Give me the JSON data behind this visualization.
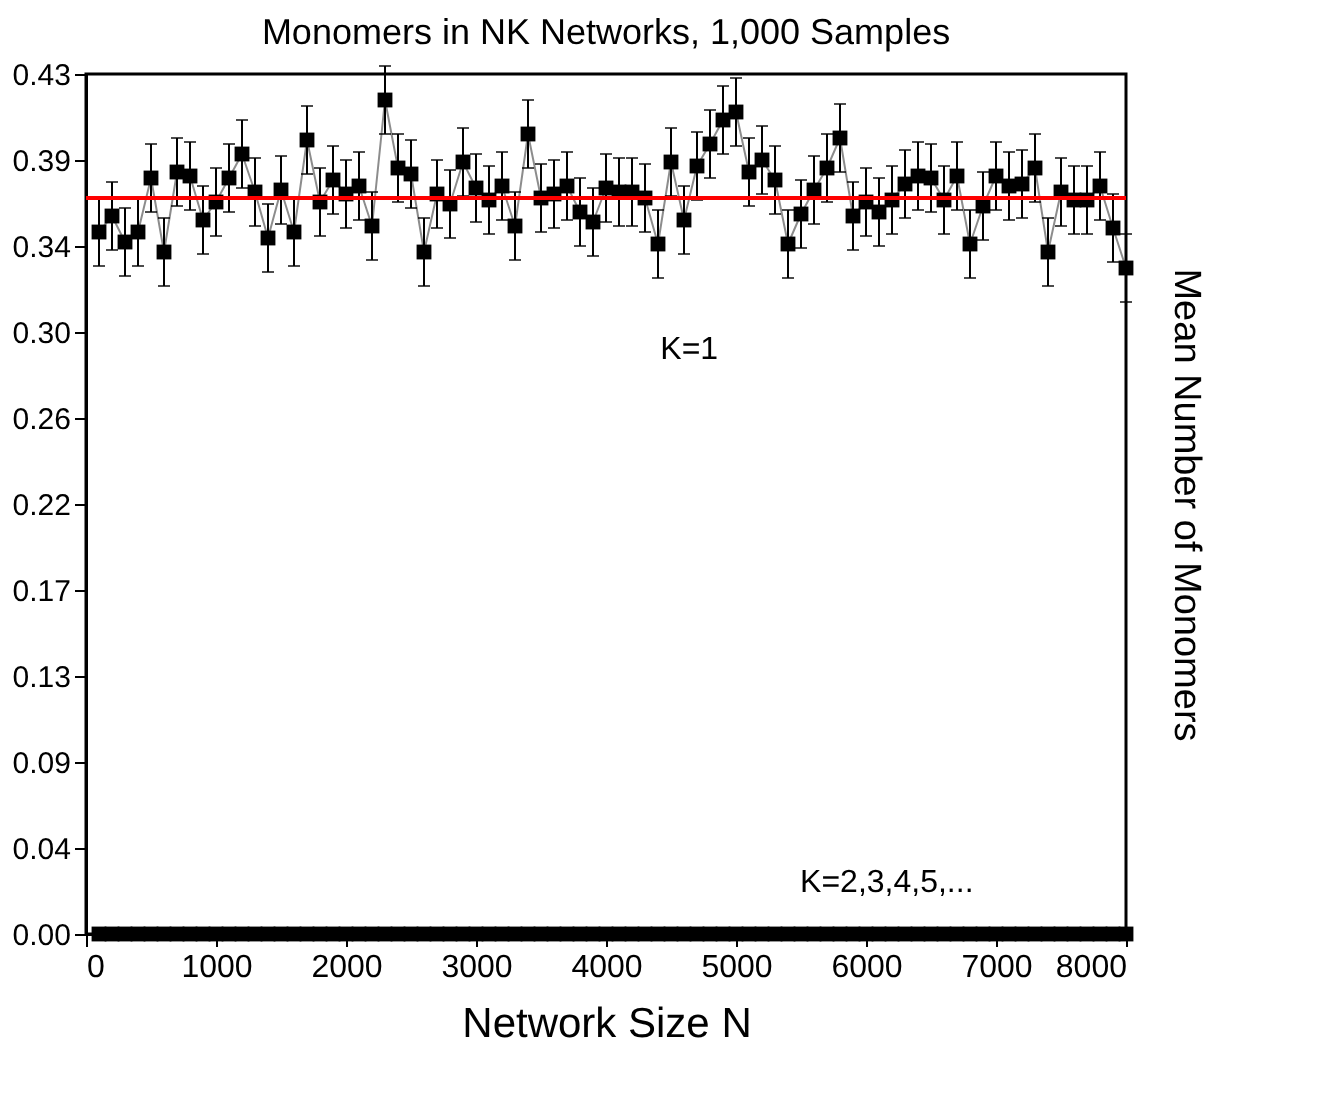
{
  "chart_data": {
    "type": "scatter",
    "title": "Monomers in NK Networks, 1,000 Samples",
    "xlabel": "Network Size N",
    "ylabel": "Mean Number of Monomers",
    "x": [
      100,
      200,
      300,
      400,
      500,
      600,
      700,
      800,
      900,
      1000,
      1100,
      1200,
      1300,
      1400,
      1500,
      1600,
      1700,
      1800,
      1900,
      2000,
      2100,
      2200,
      2300,
      2400,
      2500,
      2600,
      2700,
      2800,
      2900,
      3000,
      3100,
      3200,
      3300,
      3400,
      3500,
      3600,
      3700,
      3800,
      3900,
      4000,
      4100,
      4200,
      4300,
      4400,
      4500,
      4600,
      4700,
      4800,
      4900,
      5000,
      5100,
      5200,
      5300,
      5400,
      5500,
      5600,
      5700,
      5800,
      5900,
      6000,
      6100,
      6200,
      6300,
      6400,
      6500,
      6600,
      6700,
      6800,
      6900,
      7000,
      7100,
      7200,
      7300,
      7400,
      7500,
      7600,
      7700,
      7800,
      7900,
      8000
    ],
    "series": [
      {
        "color": "#000000",
        "type": "line",
        "marker": "square",
        "values": [
          0.351,
          0.359,
          0.346,
          0.351,
          0.378,
          0.341,
          0.381,
          0.379,
          0.357,
          0.366,
          0.378,
          0.39,
          0.371,
          0.348,
          0.372,
          0.351,
          0.397,
          0.366,
          0.377,
          0.37,
          0.374,
          0.354,
          0.417,
          0.383,
          0.38,
          0.341,
          0.37,
          0.365,
          0.386,
          0.373,
          0.367,
          0.374,
          0.354,
          0.4,
          0.368,
          0.37,
          0.374,
          0.361,
          0.356,
          0.373,
          0.371,
          0.371,
          0.368,
          0.345,
          0.386,
          0.357,
          0.384,
          0.395,
          0.407,
          0.411,
          0.381,
          0.387,
          0.377,
          0.345,
          0.36,
          0.372,
          0.383,
          0.398,
          0.359,
          0.366,
          0.361,
          0.367,
          0.375,
          0.379,
          0.378,
          0.367,
          0.379,
          0.345,
          0.364,
          0.379,
          0.374,
          0.375,
          0.383,
          0.341,
          0.371,
          0.367,
          0.367,
          0.374,
          0.353,
          0.333
        ],
        "errors": [
          0.017,
          0.017,
          0.017,
          0.017,
          0.017,
          0.017,
          0.017,
          0.017,
          0.017,
          0.017,
          0.017,
          0.017,
          0.017,
          0.017,
          0.017,
          0.017,
          0.017,
          0.017,
          0.017,
          0.017,
          0.017,
          0.017,
          0.017,
          0.017,
          0.017,
          0.017,
          0.017,
          0.017,
          0.017,
          0.017,
          0.017,
          0.017,
          0.017,
          0.017,
          0.017,
          0.017,
          0.017,
          0.017,
          0.017,
          0.017,
          0.017,
          0.017,
          0.017,
          0.017,
          0.017,
          0.017,
          0.017,
          0.017,
          0.017,
          0.017,
          0.017,
          0.017,
          0.017,
          0.017,
          0.017,
          0.017,
          0.017,
          0.017,
          0.017,
          0.017,
          0.017,
          0.017,
          0.017,
          0.017,
          0.017,
          0.017,
          0.017,
          0.017,
          0.017,
          0.017,
          0.017,
          0.017,
          0.017,
          0.017,
          0.017,
          0.017,
          0.017,
          0.017,
          0.017,
          0.017
        ]
      },
      {
        "color": "#000000",
        "marker": "square",
        "values": [
          0,
          0,
          0,
          0,
          0,
          0,
          0,
          0,
          0,
          0,
          0,
          0,
          0,
          0,
          0,
          0,
          0,
          0,
          0,
          0,
          0,
          0,
          0,
          0,
          0,
          0,
          0,
          0,
          0,
          0,
          0,
          0,
          0,
          0,
          0,
          0,
          0,
          0,
          0,
          0,
          0,
          0,
          0,
          0,
          0,
          0,
          0,
          0,
          0,
          0,
          0,
          0,
          0,
          0,
          0,
          0,
          0,
          0,
          0,
          0,
          0,
          0,
          0,
          0,
          0,
          0,
          0,
          0,
          0,
          0,
          0,
          0,
          0,
          0,
          0,
          0,
          0,
          0,
          0,
          0
        ]
      }
    ],
    "ref_lines": [
      {
        "axis": "y",
        "value": 0.368,
        "color": "#ff0000"
      }
    ],
    "annotations": [
      "K=1",
      "K=2,3,4,5,..."
    ],
    "xlim": [
      0,
      8000
    ],
    "xticks": [
      0,
      1000,
      2000,
      3000,
      4000,
      5000,
      6000,
      7000,
      8000
    ],
    "ylim": [
      0,
      0.43
    ],
    "yticks": [
      {
        "value": 0,
        "label": "0.00"
      },
      {
        "value": 0.043,
        "label": "0.04"
      },
      {
        "value": 0.086,
        "label": "0.09"
      },
      {
        "value": 0.129,
        "label": "0.13"
      },
      {
        "value": 0.172,
        "label": "0.17"
      },
      {
        "value": 0.215,
        "label": "0.22"
      },
      {
        "value": 0.258,
        "label": "0.26"
      },
      {
        "value": 0.301,
        "label": "0.30"
      },
      {
        "value": 0.344,
        "label": "0.34"
      },
      {
        "value": 0.387,
        "label": "0.39"
      },
      {
        "value": 0.43,
        "label": "0.43"
      }
    ],
    "grid": false
  }
}
